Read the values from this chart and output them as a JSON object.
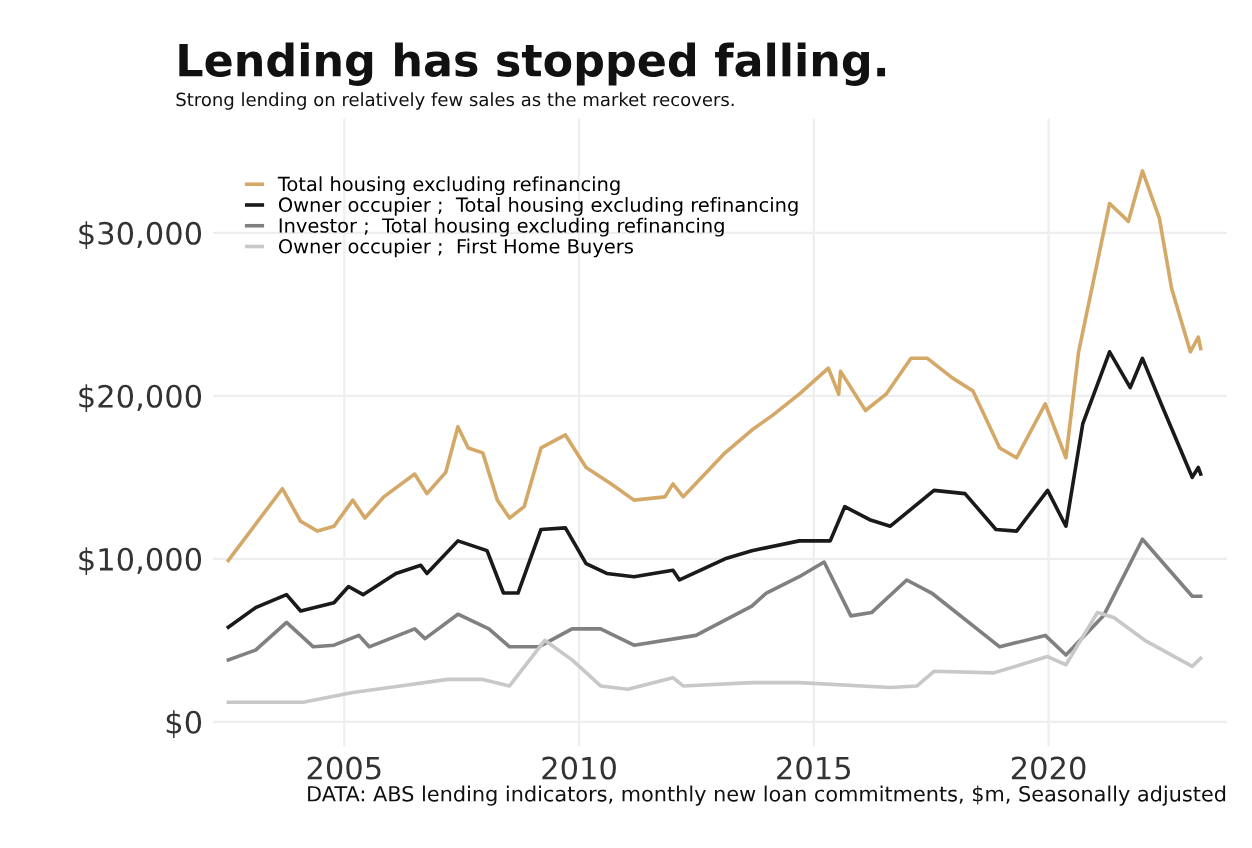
{
  "chart_data": {
    "type": "line",
    "title": "Lending has stopped falling.",
    "subtitle": "Strong lending on relatively few sales as the market recovers.",
    "annotations": [
      "DATA: ABS lending indicators, monthly new loan commitments, $m, Seasonally adjusted"
    ],
    "series": [
      {
        "name": "Total housing excluding refinancing",
        "color": "#d4a867",
        "x": [
          2002.53,
          2003.68,
          2004.07,
          2004.43,
          2004.78,
          2005.18,
          2005.44,
          2005.84,
          2006.5,
          2006.76,
          2007.16,
          2007.42,
          2007.64,
          2007.95,
          2008.26,
          2008.52,
          2008.83,
          2009.19,
          2009.71,
          2010.15,
          2010.68,
          2011.17,
          2011.83,
          2012.0,
          2012.22,
          2013.11,
          2013.68,
          2014.12,
          2014.69,
          2015.31,
          2015.53,
          2015.57,
          2016.1,
          2016.54,
          2017.07,
          2017.42,
          2017.95,
          2018.39,
          2018.96,
          2019.32,
          2019.93,
          2020.37,
          2020.64,
          2021.04,
          2021.3,
          2021.7,
          2022.0,
          2022.36,
          2022.62,
          2023.02,
          2023.19,
          2023.24
        ],
        "values": [
          9900,
          14300,
          12300,
          11700,
          12000,
          13600,
          12500,
          13800,
          15200,
          14000,
          15300,
          18100,
          16800,
          16500,
          13600,
          12500,
          13200,
          16800,
          17600,
          15600,
          14600,
          13600,
          13800,
          14600,
          13800,
          16500,
          17900,
          18800,
          20100,
          21700,
          20100,
          21500,
          19100,
          20100,
          22300,
          22300,
          21100,
          20300,
          16800,
          16200,
          19500,
          16200,
          22700,
          28200,
          31800,
          30700,
          33800,
          30900,
          26600,
          22700,
          23600,
          22900
        ]
      },
      {
        "name": "Owner occupier ;  Total housing excluding refinancing",
        "color": "#1a1a1a",
        "x": [
          2002.53,
          2003.11,
          2003.77,
          2004.07,
          2004.78,
          2005.09,
          2005.4,
          2006.1,
          2006.63,
          2006.76,
          2007.42,
          2008.04,
          2008.39,
          2008.7,
          2009.19,
          2009.71,
          2010.15,
          2010.59,
          2011.17,
          2012.0,
          2012.14,
          2013.11,
          2013.68,
          2014.69,
          2015.35,
          2015.66,
          2016.19,
          2016.63,
          2017.56,
          2018.22,
          2018.88,
          2019.32,
          2019.98,
          2020.37,
          2020.73,
          2021.3,
          2021.74,
          2022.0,
          2022.4,
          2023.06,
          2023.19,
          2023.24
        ],
        "values": [
          5800,
          7000,
          7800,
          6800,
          7300,
          8300,
          7800,
          9100,
          9600,
          9100,
          11100,
          10500,
          7900,
          7900,
          11800,
          11900,
          9700,
          9100,
          8900,
          9300,
          8700,
          10000,
          10500,
          11100,
          11100,
          13200,
          12400,
          12000,
          14200,
          14000,
          11800,
          11700,
          14200,
          12000,
          18300,
          22700,
          20500,
          22300,
          19500,
          15000,
          15600,
          15200
        ]
      },
      {
        "name": "Investor ;  Total housing excluding refinancing",
        "color": "#808080",
        "x": [
          2002.53,
          2003.11,
          2003.77,
          2004.34,
          2004.78,
          2005.31,
          2005.53,
          2006.5,
          2006.72,
          2007.42,
          2008.08,
          2008.52,
          2009.14,
          2009.85,
          2010.46,
          2011.17,
          2012.49,
          2013.68,
          2013.99,
          2014.69,
          2015.22,
          2015.79,
          2016.23,
          2016.98,
          2017.51,
          2018.96,
          2019.93,
          2020.37,
          2021.17,
          2022.0,
          2023.06,
          2023.24
        ],
        "values": [
          3800,
          4400,
          6100,
          4600,
          4700,
          5300,
          4600,
          5700,
          5100,
          6600,
          5700,
          4600,
          4600,
          5700,
          5700,
          4700,
          5300,
          7100,
          7900,
          8900,
          9800,
          6500,
          6700,
          8700,
          7900,
          4600,
          5300,
          4100,
          6500,
          11200,
          7700,
          7700
        ]
      },
      {
        "name": "Owner occupier ;  First Home Buyers",
        "color": "#c8c8c8",
        "x": [
          2002.53,
          2004.12,
          2005.18,
          2006.19,
          2007.2,
          2007.95,
          2008.52,
          2009.27,
          2009.85,
          2010.46,
          2011.04,
          2012.0,
          2012.22,
          2013.68,
          2014.69,
          2016.63,
          2017.2,
          2017.56,
          2018.83,
          2019.98,
          2020.37,
          2021.04,
          2021.39,
          2022.05,
          2023.06,
          2023.24
        ],
        "values": [
          1200,
          1200,
          1800,
          2200,
          2600,
          2600,
          2200,
          5000,
          3800,
          2200,
          2000,
          2700,
          2200,
          2400,
          2400,
          2100,
          2200,
          3100,
          3000,
          4000,
          3500,
          6700,
          6400,
          5000,
          3400,
          3900
        ]
      }
    ],
    "xlim": [
      2002.2,
      2023.8
    ],
    "xticks": [
      2005,
      2010,
      2015,
      2020
    ],
    "ylim": [
      -1500,
      37000
    ],
    "yticks": [
      {
        "value": 0,
        "label": "$0"
      },
      {
        "value": 10000,
        "label": "$10,000"
      },
      {
        "value": 20000,
        "label": "$20,000"
      },
      {
        "value": 30000,
        "label": "$30,000"
      }
    ],
    "grid": true,
    "legend": "top left",
    "marker": "none",
    "line_style": "solid"
  }
}
